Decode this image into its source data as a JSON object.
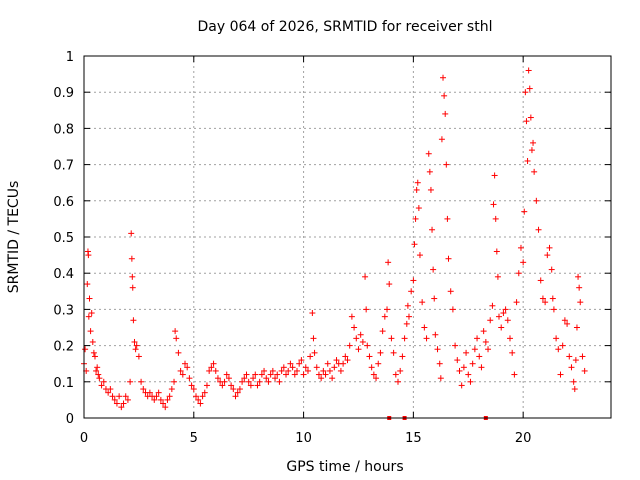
{
  "chart_data": {
    "type": "scatter",
    "title": "Day 064 of 2026, SRMTID for receiver sthl",
    "xlabel": "GPS time / hours",
    "ylabel": "SRMTID / TECUs",
    "xlim": [
      0,
      24
    ],
    "ylim": [
      0,
      1
    ],
    "xticks": [
      0,
      5,
      10,
      15,
      20
    ],
    "xtick_labels": [
      "0",
      "5",
      "10",
      "15",
      "20"
    ],
    "yticks": [
      0,
      0.1,
      0.2,
      0.3,
      0.4,
      0.5,
      0.6,
      0.7,
      0.8,
      0.9,
      1
    ],
    "ytick_labels": [
      "0",
      "0.1",
      "0.2",
      "0.3",
      "0.4",
      "0.5",
      "0.6",
      "0.7",
      "0.8",
      "0.9",
      "1"
    ],
    "grid": true,
    "marker": "+",
    "color": "#ff0000",
    "series": [
      {
        "name": "sthl",
        "points": [
          [
            0.0,
            0.15
          ],
          [
            0.05,
            0.19
          ],
          [
            0.1,
            0.13
          ],
          [
            0.15,
            0.37
          ],
          [
            0.18,
            0.46
          ],
          [
            0.2,
            0.45
          ],
          [
            0.22,
            0.28
          ],
          [
            0.25,
            0.33
          ],
          [
            0.3,
            0.24
          ],
          [
            0.35,
            0.29
          ],
          [
            0.4,
            0.21
          ],
          [
            0.45,
            0.18
          ],
          [
            0.5,
            0.17
          ],
          [
            0.55,
            0.13
          ],
          [
            0.6,
            0.14
          ],
          [
            0.65,
            0.12
          ],
          [
            0.7,
            0.11
          ],
          [
            0.8,
            0.09
          ],
          [
            0.9,
            0.1
          ],
          [
            1.0,
            0.08
          ],
          [
            1.1,
            0.07
          ],
          [
            1.2,
            0.08
          ],
          [
            1.3,
            0.06
          ],
          [
            1.4,
            0.05
          ],
          [
            1.5,
            0.04
          ],
          [
            1.6,
            0.06
          ],
          [
            1.7,
            0.03
          ],
          [
            1.8,
            0.04
          ],
          [
            1.9,
            0.06
          ],
          [
            2.0,
            0.05
          ],
          [
            2.1,
            0.1
          ],
          [
            2.15,
            0.51
          ],
          [
            2.18,
            0.44
          ],
          [
            2.2,
            0.39
          ],
          [
            2.22,
            0.36
          ],
          [
            2.25,
            0.27
          ],
          [
            2.3,
            0.21
          ],
          [
            2.35,
            0.19
          ],
          [
            2.4,
            0.2
          ],
          [
            2.5,
            0.17
          ],
          [
            2.6,
            0.1
          ],
          [
            2.7,
            0.08
          ],
          [
            2.8,
            0.07
          ],
          [
            2.9,
            0.06
          ],
          [
            3.0,
            0.07
          ],
          [
            3.1,
            0.06
          ],
          [
            3.2,
            0.05
          ],
          [
            3.3,
            0.06
          ],
          [
            3.4,
            0.07
          ],
          [
            3.5,
            0.05
          ],
          [
            3.6,
            0.04
          ],
          [
            3.7,
            0.03
          ],
          [
            3.8,
            0.05
          ],
          [
            3.9,
            0.06
          ],
          [
            4.0,
            0.08
          ],
          [
            4.1,
            0.1
          ],
          [
            4.15,
            0.24
          ],
          [
            4.2,
            0.22
          ],
          [
            4.3,
            0.18
          ],
          [
            4.4,
            0.13
          ],
          [
            4.5,
            0.12
          ],
          [
            4.6,
            0.15
          ],
          [
            4.7,
            0.14
          ],
          [
            4.8,
            0.11
          ],
          [
            4.9,
            0.09
          ],
          [
            5.0,
            0.08
          ],
          [
            5.1,
            0.06
          ],
          [
            5.2,
            0.05
          ],
          [
            5.3,
            0.04
          ],
          [
            5.4,
            0.06
          ],
          [
            5.5,
            0.07
          ],
          [
            5.6,
            0.09
          ],
          [
            5.7,
            0.13
          ],
          [
            5.8,
            0.14
          ],
          [
            5.9,
            0.15
          ],
          [
            6.0,
            0.13
          ],
          [
            6.1,
            0.11
          ],
          [
            6.2,
            0.1
          ],
          [
            6.3,
            0.09
          ],
          [
            6.4,
            0.1
          ],
          [
            6.5,
            0.12
          ],
          [
            6.6,
            0.11
          ],
          [
            6.7,
            0.09
          ],
          [
            6.8,
            0.08
          ],
          [
            6.9,
            0.06
          ],
          [
            7.0,
            0.07
          ],
          [
            7.1,
            0.08
          ],
          [
            7.2,
            0.1
          ],
          [
            7.3,
            0.11
          ],
          [
            7.4,
            0.12
          ],
          [
            7.5,
            0.1
          ],
          [
            7.6,
            0.09
          ],
          [
            7.7,
            0.11
          ],
          [
            7.8,
            0.12
          ],
          [
            7.9,
            0.09
          ],
          [
            8.0,
            0.1
          ],
          [
            8.1,
            0.12
          ],
          [
            8.2,
            0.13
          ],
          [
            8.3,
            0.11
          ],
          [
            8.4,
            0.1
          ],
          [
            8.5,
            0.12
          ],
          [
            8.6,
            0.13
          ],
          [
            8.7,
            0.11
          ],
          [
            8.8,
            0.12
          ],
          [
            8.9,
            0.1
          ],
          [
            9.0,
            0.13
          ],
          [
            9.1,
            0.14
          ],
          [
            9.2,
            0.12
          ],
          [
            9.3,
            0.13
          ],
          [
            9.4,
            0.15
          ],
          [
            9.5,
            0.14
          ],
          [
            9.6,
            0.12
          ],
          [
            9.7,
            0.13
          ],
          [
            9.8,
            0.15
          ],
          [
            9.9,
            0.16
          ],
          [
            10.0,
            0.12
          ],
          [
            10.1,
            0.14
          ],
          [
            10.2,
            0.13
          ],
          [
            10.3,
            0.17
          ],
          [
            10.4,
            0.29
          ],
          [
            10.45,
            0.22
          ],
          [
            10.5,
            0.18
          ],
          [
            10.6,
            0.14
          ],
          [
            10.7,
            0.12
          ],
          [
            10.8,
            0.11
          ],
          [
            10.9,
            0.13
          ],
          [
            11.0,
            0.12
          ],
          [
            11.1,
            0.15
          ],
          [
            11.2,
            0.13
          ],
          [
            11.3,
            0.11
          ],
          [
            11.4,
            0.14
          ],
          [
            11.5,
            0.16
          ],
          [
            11.6,
            0.15
          ],
          [
            11.7,
            0.13
          ],
          [
            11.8,
            0.15
          ],
          [
            11.9,
            0.17
          ],
          [
            12.0,
            0.16
          ],
          [
            12.1,
            0.2
          ],
          [
            12.2,
            0.28
          ],
          [
            12.3,
            0.25
          ],
          [
            12.4,
            0.22
          ],
          [
            12.5,
            0.19
          ],
          [
            12.6,
            0.23
          ],
          [
            12.7,
            0.21
          ],
          [
            12.8,
            0.39
          ],
          [
            12.85,
            0.3
          ],
          [
            12.9,
            0.2
          ],
          [
            13.0,
            0.17
          ],
          [
            13.1,
            0.14
          ],
          [
            13.2,
            0.12
          ],
          [
            13.3,
            0.11
          ],
          [
            13.4,
            0.15
          ],
          [
            13.5,
            0.18
          ],
          [
            13.6,
            0.24
          ],
          [
            13.7,
            0.28
          ],
          [
            13.8,
            0.3
          ],
          [
            13.85,
            0.43
          ],
          [
            13.9,
            0.37
          ],
          [
            14.0,
            0.22
          ],
          [
            14.1,
            0.18
          ],
          [
            14.2,
            0.12
          ],
          [
            14.3,
            0.1
          ],
          [
            14.4,
            0.13
          ],
          [
            14.5,
            0.17
          ],
          [
            14.6,
            0.22
          ],
          [
            14.7,
            0.26
          ],
          [
            14.75,
            0.31
          ],
          [
            14.8,
            0.28
          ],
          [
            14.9,
            0.35
          ],
          [
            15.0,
            0.38
          ],
          [
            15.05,
            0.48
          ],
          [
            15.1,
            0.55
          ],
          [
            15.15,
            0.63
          ],
          [
            15.2,
            0.65
          ],
          [
            15.25,
            0.58
          ],
          [
            15.3,
            0.45
          ],
          [
            15.4,
            0.32
          ],
          [
            15.5,
            0.25
          ],
          [
            15.6,
            0.22
          ],
          [
            15.7,
            0.73
          ],
          [
            15.75,
            0.68
          ],
          [
            15.8,
            0.63
          ],
          [
            15.85,
            0.52
          ],
          [
            15.9,
            0.41
          ],
          [
            15.95,
            0.33
          ],
          [
            16.0,
            0.23
          ],
          [
            16.1,
            0.19
          ],
          [
            16.2,
            0.15
          ],
          [
            16.25,
            0.11
          ],
          [
            16.3,
            0.77
          ],
          [
            16.35,
            0.94
          ],
          [
            16.4,
            0.89
          ],
          [
            16.45,
            0.84
          ],
          [
            16.5,
            0.7
          ],
          [
            16.55,
            0.55
          ],
          [
            16.6,
            0.44
          ],
          [
            16.7,
            0.35
          ],
          [
            16.8,
            0.3
          ],
          [
            16.9,
            0.2
          ],
          [
            17.0,
            0.16
          ],
          [
            17.1,
            0.13
          ],
          [
            17.2,
            0.09
          ],
          [
            17.3,
            0.14
          ],
          [
            17.4,
            0.18
          ],
          [
            17.5,
            0.12
          ],
          [
            17.6,
            0.1
          ],
          [
            17.7,
            0.15
          ],
          [
            17.8,
            0.19
          ],
          [
            17.9,
            0.22
          ],
          [
            18.0,
            0.17
          ],
          [
            18.1,
            0.14
          ],
          [
            18.2,
            0.24
          ],
          [
            18.3,
            0.21
          ],
          [
            18.4,
            0.19
          ],
          [
            18.5,
            0.27
          ],
          [
            18.6,
            0.31
          ],
          [
            18.65,
            0.59
          ],
          [
            18.7,
            0.67
          ],
          [
            18.75,
            0.55
          ],
          [
            18.8,
            0.46
          ],
          [
            18.85,
            0.39
          ],
          [
            18.9,
            0.28
          ],
          [
            19.0,
            0.25
          ],
          [
            19.1,
            0.29
          ],
          [
            19.2,
            0.3
          ],
          [
            19.3,
            0.27
          ],
          [
            19.4,
            0.22
          ],
          [
            19.5,
            0.18
          ],
          [
            19.6,
            0.12
          ],
          [
            19.7,
            0.32
          ],
          [
            19.8,
            0.4
          ],
          [
            19.9,
            0.47
          ],
          [
            20.0,
            0.43
          ],
          [
            20.05,
            0.57
          ],
          [
            20.1,
            0.9
          ],
          [
            20.15,
            0.82
          ],
          [
            20.2,
            0.71
          ],
          [
            20.25,
            0.96
          ],
          [
            20.3,
            0.91
          ],
          [
            20.35,
            0.83
          ],
          [
            20.4,
            0.74
          ],
          [
            20.45,
            0.76
          ],
          [
            20.5,
            0.68
          ],
          [
            20.6,
            0.6
          ],
          [
            20.7,
            0.52
          ],
          [
            20.8,
            0.38
          ],
          [
            20.9,
            0.33
          ],
          [
            21.0,
            0.32
          ],
          [
            21.1,
            0.45
          ],
          [
            21.2,
            0.47
          ],
          [
            21.3,
            0.41
          ],
          [
            21.35,
            0.33
          ],
          [
            21.4,
            0.3
          ],
          [
            21.5,
            0.22
          ],
          [
            21.6,
            0.19
          ],
          [
            21.7,
            0.12
          ],
          [
            21.8,
            0.2
          ],
          [
            21.9,
            0.27
          ],
          [
            22.0,
            0.26
          ],
          [
            22.1,
            0.17
          ],
          [
            22.2,
            0.14
          ],
          [
            22.3,
            0.1
          ],
          [
            22.35,
            0.08
          ],
          [
            22.4,
            0.16
          ],
          [
            22.45,
            0.25
          ],
          [
            22.5,
            0.39
          ],
          [
            22.55,
            0.36
          ],
          [
            22.6,
            0.32
          ],
          [
            22.7,
            0.17
          ],
          [
            22.8,
            0.13
          ]
        ]
      }
    ],
    "outliers": [
      [
        13.9,
        0.0
      ],
      [
        14.6,
        0.0
      ],
      [
        18.3,
        0.0
      ]
    ]
  }
}
